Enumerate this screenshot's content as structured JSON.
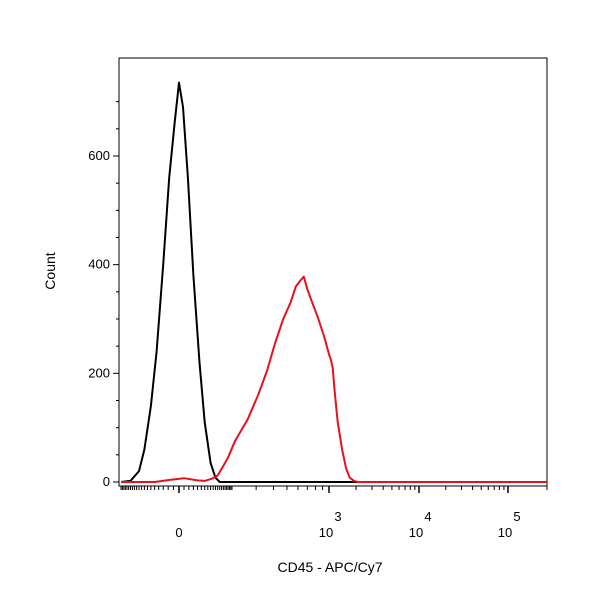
{
  "chart_data": {
    "type": "line",
    "xlabel": "CD45 - APC/Cy7",
    "ylabel": "Count",
    "x_scale": "biexponential",
    "xlim": [
      -200,
      200000
    ],
    "ylim": [
      0,
      760
    ],
    "y_ticks": [
      {
        "value": 0,
        "label": "0"
      },
      {
        "value": 200,
        "label": "200"
      },
      {
        "value": 400,
        "label": "400"
      },
      {
        "value": 600,
        "label": "600"
      }
    ],
    "x_ticks": [
      {
        "value": 0,
        "base": "0",
        "exp": ""
      },
      {
        "value": 1000,
        "base": "10",
        "exp": "3"
      },
      {
        "value": 10000,
        "base": "10",
        "exp": "4"
      },
      {
        "value": 100000,
        "base": "10",
        "exp": "5"
      }
    ],
    "grid": false,
    "legend": "none",
    "series": [
      {
        "color": "#000000",
        "points": [
          [
            -200,
            0
          ],
          [
            -140,
            2
          ],
          [
            -100,
            20
          ],
          [
            -80,
            60
          ],
          [
            -60,
            140
          ],
          [
            -45,
            240
          ],
          [
            -30,
            400
          ],
          [
            -18,
            560
          ],
          [
            -8,
            660
          ],
          [
            0,
            735
          ],
          [
            8,
            690
          ],
          [
            18,
            560
          ],
          [
            30,
            380
          ],
          [
            45,
            220
          ],
          [
            60,
            110
          ],
          [
            80,
            35
          ],
          [
            100,
            8
          ],
          [
            120,
            0
          ],
          [
            200000,
            0
          ]
        ]
      },
      {
        "color": "#e8101a",
        "points": [
          [
            -200,
            0
          ],
          [
            -50,
            0
          ],
          [
            -15,
            4
          ],
          [
            10,
            7
          ],
          [
            40,
            3
          ],
          [
            60,
            2
          ],
          [
            85,
            6
          ],
          [
            110,
            12
          ],
          [
            140,
            30
          ],
          [
            170,
            45
          ],
          [
            210,
            75
          ],
          [
            260,
            115
          ],
          [
            310,
            160
          ],
          [
            360,
            205
          ],
          [
            410,
            255
          ],
          [
            470,
            300
          ],
          [
            530,
            330
          ],
          [
            580,
            360
          ],
          [
            620,
            370
          ],
          [
            660,
            378
          ],
          [
            700,
            355
          ],
          [
            760,
            330
          ],
          [
            840,
            300
          ],
          [
            930,
            265
          ],
          [
            1000,
            235
          ],
          [
            1050,
            225
          ],
          [
            1100,
            210
          ],
          [
            1150,
            170
          ],
          [
            1250,
            110
          ],
          [
            1400,
            60
          ],
          [
            1550,
            25
          ],
          [
            1700,
            8
          ],
          [
            1900,
            2
          ],
          [
            2100,
            0
          ],
          [
            200000,
            0
          ]
        ]
      }
    ]
  }
}
